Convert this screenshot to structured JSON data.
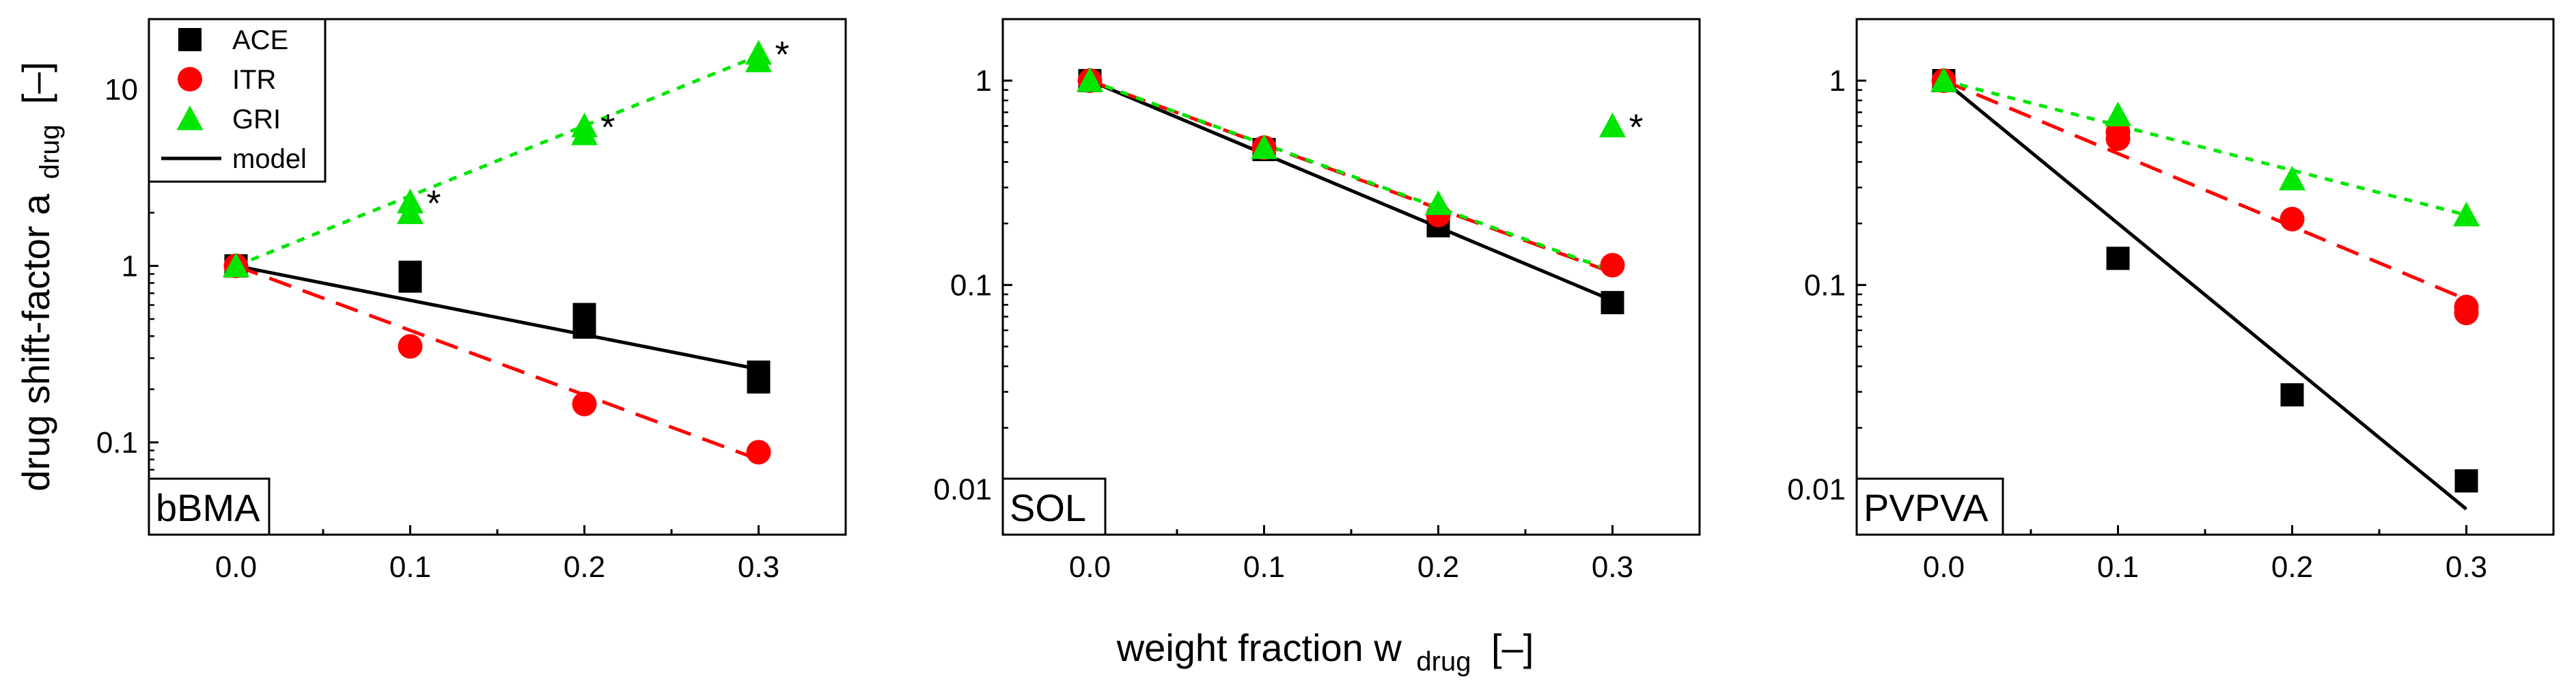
{
  "colors": {
    "ACE": "#000000",
    "ITR": "#ff0000",
    "GRI": "#00e600",
    "model": "#000000"
  },
  "y_label": {
    "main": "drug shift-factor a",
    "sub": "drug",
    "unit": "[–]"
  },
  "x_label": {
    "main": "weight fraction w",
    "sub": "drug",
    "unit": "[–]"
  },
  "legend": {
    "entries": [
      {
        "key": "ACE",
        "label": "ACE",
        "marker": "square"
      },
      {
        "key": "ITR",
        "label": "ITR",
        "marker": "circle"
      },
      {
        "key": "GRI",
        "label": "GRI",
        "marker": "triangle"
      },
      {
        "key": "model",
        "label": "model",
        "marker": "line"
      }
    ]
  },
  "chart_data": [
    {
      "type": "scatter",
      "panel_label": "bBMA",
      "yscale": "log",
      "xlim": [
        -0.05,
        0.35
      ],
      "ylim": [
        0.03,
        25
      ],
      "x_ticks": [
        0.0,
        0.1,
        0.2,
        0.3
      ],
      "x_tick_labels": [
        "0.0",
        "0.1",
        "0.2",
        "0.3"
      ],
      "y_ticks": [
        0.1,
        1,
        10
      ],
      "y_tick_labels": [
        "0.1",
        "1",
        "10"
      ],
      "series": [
        {
          "key": "ACE",
          "name": "ACE",
          "marker": "square",
          "points": [
            [
              0.0,
              1.0
            ],
            [
              0.1,
              0.82
            ],
            [
              0.1,
              0.92
            ],
            [
              0.2,
              0.45
            ],
            [
              0.2,
              0.53
            ],
            [
              0.3,
              0.22
            ],
            [
              0.3,
              0.25
            ]
          ],
          "model": {
            "x": [
              0.0,
              0.3
            ],
            "y": [
              1.0,
              0.26
            ],
            "dash": "solid"
          }
        },
        {
          "key": "ITR",
          "name": "ITR",
          "marker": "circle",
          "points": [
            [
              0.0,
              1.0
            ],
            [
              0.1,
              0.35
            ],
            [
              0.2,
              0.165
            ],
            [
              0.3,
              0.088
            ]
          ],
          "model": {
            "x": [
              0.0,
              0.3
            ],
            "y": [
              1.0,
              0.08
            ],
            "dash": "dashed"
          }
        },
        {
          "key": "GRI",
          "name": "GRI",
          "marker": "triangle",
          "points": [
            [
              0.0,
              1.0
            ],
            [
              0.1,
              2.0
            ],
            [
              0.1,
              2.3
            ],
            [
              0.2,
              5.6
            ],
            [
              0.2,
              6.2
            ],
            [
              0.3,
              14.5
            ],
            [
              0.3,
              16.0
            ]
          ],
          "model": {
            "x": [
              0.0,
              0.3
            ],
            "y": [
              1.0,
              15.5
            ],
            "dash": "dotted"
          }
        }
      ],
      "annotations": [
        {
          "text": "*",
          "x": 0.1,
          "y": 2.3
        },
        {
          "text": "*",
          "x": 0.2,
          "y": 6.2
        },
        {
          "text": "*",
          "x": 0.3,
          "y": 16.0
        }
      ]
    },
    {
      "type": "scatter",
      "panel_label": "SOL",
      "yscale": "log",
      "xlim": [
        -0.05,
        0.35
      ],
      "ylim": [
        0.006,
        2.0
      ],
      "x_ticks": [
        0.0,
        0.1,
        0.2,
        0.3
      ],
      "x_tick_labels": [
        "0.0",
        "0.1",
        "0.2",
        "0.3"
      ],
      "y_ticks": [
        0.01,
        0.1,
        1
      ],
      "y_tick_labels": [
        "0.01",
        "0.1",
        "1"
      ],
      "series": [
        {
          "key": "ACE",
          "name": "ACE",
          "marker": "square",
          "points": [
            [
              0.0,
              1.0
            ],
            [
              0.1,
              0.46
            ],
            [
              0.2,
              0.195
            ],
            [
              0.3,
              0.082
            ]
          ],
          "model": {
            "x": [
              0.0,
              0.3
            ],
            "y": [
              1.0,
              0.084
            ],
            "dash": "solid"
          }
        },
        {
          "key": "ITR",
          "name": "ITR",
          "marker": "circle",
          "points": [
            [
              0.0,
              1.0
            ],
            [
              0.1,
              0.47
            ],
            [
              0.2,
              0.22
            ],
            [
              0.3,
              0.125
            ]
          ],
          "model": {
            "x": [
              0.0,
              0.3
            ],
            "y": [
              1.0,
              0.115
            ],
            "dash": "dashed"
          }
        },
        {
          "key": "GRI",
          "name": "GRI",
          "marker": "triangle",
          "points": [
            [
              0.0,
              1.0
            ],
            [
              0.1,
              0.47
            ],
            [
              0.2,
              0.25
            ],
            [
              0.3,
              0.6
            ]
          ],
          "model": {
            "x": [
              0.0,
              0.3
            ],
            "y": [
              1.0,
              0.117
            ],
            "dash": "dotted"
          }
        }
      ],
      "annotations": [
        {
          "text": "*",
          "x": 0.3,
          "y": 0.6
        }
      ]
    },
    {
      "type": "scatter",
      "panel_label": "PVPVA",
      "yscale": "log",
      "xlim": [
        -0.05,
        0.35
      ],
      "ylim": [
        0.006,
        2.0
      ],
      "x_ticks": [
        0.0,
        0.1,
        0.2,
        0.3
      ],
      "x_tick_labels": [
        "0.0",
        "0.1",
        "0.2",
        "0.3"
      ],
      "y_ticks": [
        0.01,
        0.1,
        1
      ],
      "y_tick_labels": [
        "0.01",
        "0.1",
        "1"
      ],
      "series": [
        {
          "key": "ACE",
          "name": "ACE",
          "marker": "square",
          "points": [
            [
              0.0,
              1.0
            ],
            [
              0.1,
              0.135
            ],
            [
              0.2,
              0.029
            ],
            [
              0.3,
              0.011
            ]
          ],
          "model": {
            "x": [
              0.0,
              0.3
            ],
            "y": [
              1.0,
              0.008
            ],
            "dash": "solid"
          }
        },
        {
          "key": "ITR",
          "name": "ITR",
          "marker": "circle",
          "points": [
            [
              0.0,
              1.0
            ],
            [
              0.1,
              0.52
            ],
            [
              0.1,
              0.56
            ],
            [
              0.2,
              0.21
            ],
            [
              0.3,
              0.073
            ],
            [
              0.3,
              0.078
            ]
          ],
          "model": {
            "x": [
              0.0,
              0.3
            ],
            "y": [
              1.0,
              0.085
            ],
            "dash": "dashed"
          }
        },
        {
          "key": "GRI",
          "name": "GRI",
          "marker": "triangle",
          "points": [
            [
              0.0,
              1.0
            ],
            [
              0.1,
              0.68
            ],
            [
              0.2,
              0.33
            ],
            [
              0.3,
              0.22
            ]
          ],
          "model": {
            "x": [
              0.0,
              0.3
            ],
            "y": [
              1.0,
              0.22
            ],
            "dash": "dotted"
          }
        }
      ],
      "annotations": []
    }
  ]
}
